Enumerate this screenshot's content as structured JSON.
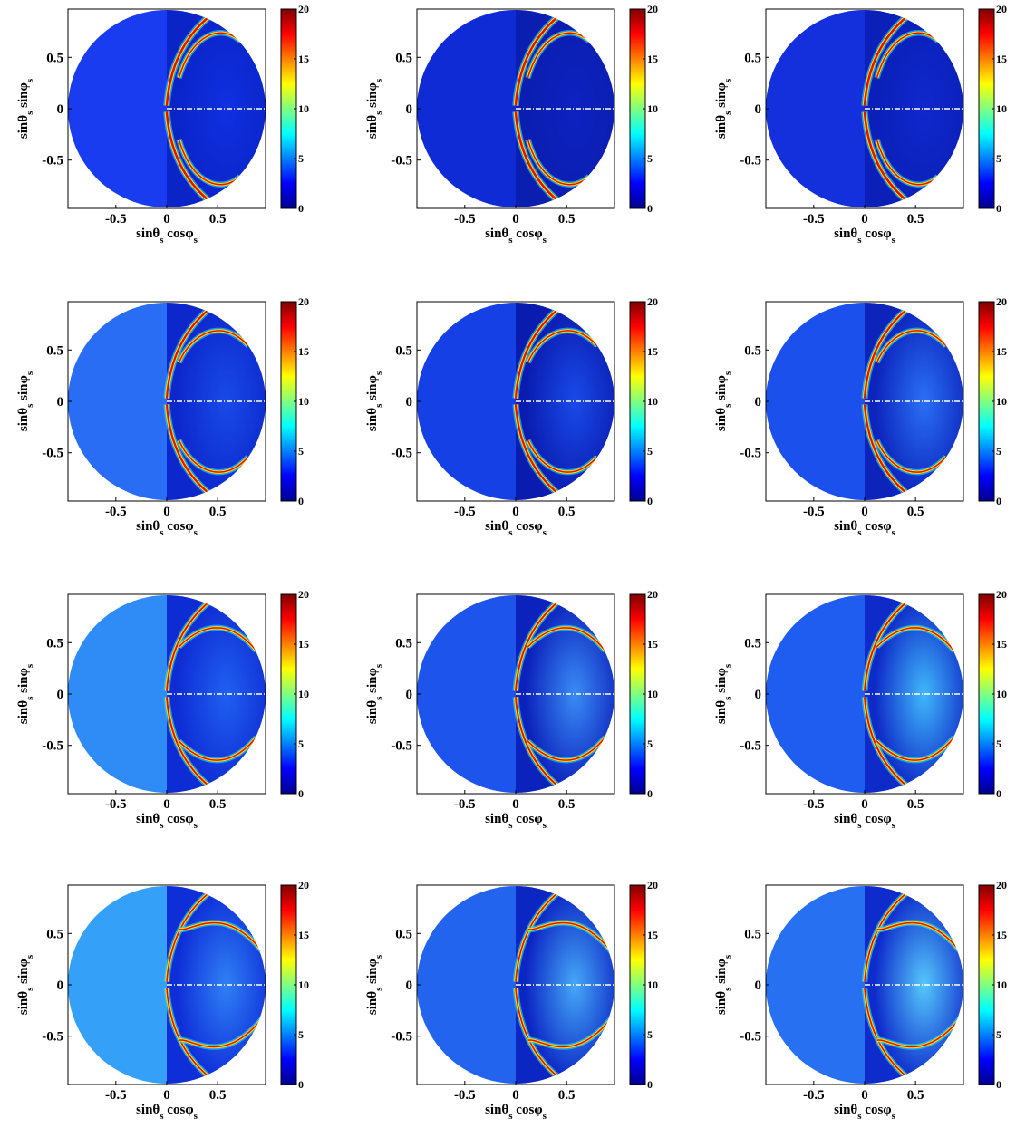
{
  "chart_data": [
    {
      "type": "heatmap",
      "xlabel": [
        "sinθ",
        "s",
        " cosφ",
        "s"
      ],
      "ylabel": [
        "sinθ",
        "s",
        " sinφ",
        "s"
      ],
      "xlim": [
        -0.97,
        0.97
      ],
      "ylim": [
        -0.97,
        0.97
      ],
      "xticks": [
        -0.5,
        0,
        0.5
      ],
      "yticks": [
        -0.5,
        0,
        0.5
      ],
      "colorbar": {
        "lim": [
          0,
          20
        ],
        "ticks": [
          0,
          5,
          10,
          15,
          20
        ],
        "colormap": "jet"
      }
    },
    {
      "type": "heatmap",
      "xlabel": [
        "sinθ",
        "s",
        " cosφ",
        "s"
      ],
      "ylabel": [
        "sinθ",
        "s",
        " sinφ",
        "s"
      ],
      "xlim": [
        -0.97,
        0.97
      ],
      "ylim": [
        -0.97,
        0.97
      ],
      "xticks": [
        -0.5,
        0,
        0.5
      ],
      "yticks": [
        -0.5,
        0,
        0.5
      ],
      "colorbar": {
        "lim": [
          0,
          20
        ],
        "ticks": [
          0,
          5,
          10,
          15,
          20
        ],
        "colormap": "jet"
      }
    },
    {
      "type": "heatmap",
      "xlabel": [
        "sinθ",
        "s",
        " cosφ",
        "s"
      ],
      "ylabel": [
        "sinθ",
        "s",
        " sinφ",
        "s"
      ],
      "xlim": [
        -0.97,
        0.97
      ],
      "ylim": [
        -0.97,
        0.97
      ],
      "xticks": [
        -0.5,
        0,
        0.5
      ],
      "yticks": [
        -0.5,
        0,
        0.5
      ],
      "colorbar": {
        "lim": [
          0,
          20
        ],
        "ticks": [
          0,
          5,
          10,
          15,
          20
        ],
        "colormap": "jet"
      }
    },
    {
      "type": "heatmap",
      "xlabel": [
        "sinθ",
        "s",
        " cosφ",
        "s"
      ],
      "ylabel": [
        "sinθ",
        "s",
        " sinφ",
        "s"
      ],
      "xlim": [
        -0.97,
        0.97
      ],
      "ylim": [
        -0.97,
        0.97
      ],
      "xticks": [
        -0.5,
        0,
        0.5
      ],
      "yticks": [
        -0.5,
        0,
        0.5
      ],
      "colorbar": {
        "lim": [
          0,
          20
        ],
        "ticks": [
          0,
          5,
          10,
          15,
          20
        ],
        "colormap": "jet"
      }
    },
    {
      "type": "heatmap",
      "xlabel": [
        "sinθ",
        "s",
        " cosφ",
        "s"
      ],
      "ylabel": [
        "sinθ",
        "s",
        " sinφ",
        "s"
      ],
      "xlim": [
        -0.97,
        0.97
      ],
      "ylim": [
        -0.97,
        0.97
      ],
      "xticks": [
        -0.5,
        0,
        0.5
      ],
      "yticks": [
        -0.5,
        0,
        0.5
      ],
      "colorbar": {
        "lim": [
          0,
          20
        ],
        "ticks": [
          0,
          5,
          10,
          15,
          20
        ],
        "colormap": "jet"
      }
    },
    {
      "type": "heatmap",
      "xlabel": [
        "sinθ",
        "s",
        " cosφ",
        "s"
      ],
      "ylabel": [
        "sinθ",
        "s",
        " sinφ",
        "s"
      ],
      "xlim": [
        -0.97,
        0.97
      ],
      "ylim": [
        -0.97,
        0.97
      ],
      "xticks": [
        -0.5,
        0,
        0.5
      ],
      "yticks": [
        -0.5,
        0,
        0.5
      ],
      "colorbar": {
        "lim": [
          0,
          20
        ],
        "ticks": [
          0,
          5,
          10,
          15,
          20
        ],
        "colormap": "jet"
      }
    },
    {
      "type": "heatmap",
      "xlabel": [
        "sinθ",
        "s",
        " cosφ",
        "s"
      ],
      "ylabel": [
        "sinθ",
        "s",
        " sinφ",
        "s"
      ],
      "xlim": [
        -0.97,
        0.97
      ],
      "ylim": [
        -0.97,
        0.97
      ],
      "xticks": [
        -0.5,
        0,
        0.5
      ],
      "yticks": [
        -0.5,
        0,
        0.5
      ],
      "colorbar": {
        "lim": [
          0,
          20
        ],
        "ticks": [
          0,
          5,
          10,
          15,
          20
        ],
        "colormap": "jet"
      }
    },
    {
      "type": "heatmap",
      "xlabel": [
        "sinθ",
        "s",
        " cosφ",
        "s"
      ],
      "ylabel": [
        "sinθ",
        "s",
        " sinφ",
        "s"
      ],
      "xlim": [
        -0.97,
        0.97
      ],
      "ylim": [
        -0.97,
        0.97
      ],
      "xticks": [
        -0.5,
        0,
        0.5
      ],
      "yticks": [
        -0.5,
        0,
        0.5
      ],
      "colorbar": {
        "lim": [
          0,
          20
        ],
        "ticks": [
          0,
          5,
          10,
          15,
          20
        ],
        "colormap": "jet"
      }
    },
    {
      "type": "heatmap",
      "xlabel": [
        "sinθ",
        "s",
        " cosφ",
        "s"
      ],
      "ylabel": [
        "sinθ",
        "s",
        " sinφ",
        "s"
      ],
      "xlim": [
        -0.97,
        0.97
      ],
      "ylim": [
        -0.97,
        0.97
      ],
      "xticks": [
        -0.5,
        0,
        0.5
      ],
      "yticks": [
        -0.5,
        0,
        0.5
      ],
      "colorbar": {
        "lim": [
          0,
          20
        ],
        "ticks": [
          0,
          5,
          10,
          15,
          20
        ],
        "colormap": "jet"
      }
    },
    {
      "type": "heatmap",
      "xlabel": [
        "sinθ",
        "s",
        " cosφ",
        "s"
      ],
      "ylabel": [
        "sinθ",
        "s",
        " sinφ",
        "s"
      ],
      "xlim": [
        -0.97,
        0.97
      ],
      "ylim": [
        -0.97,
        0.97
      ],
      "xticks": [
        -0.5,
        0,
        0.5
      ],
      "yticks": [
        -0.5,
        0,
        0.5
      ],
      "colorbar": {
        "lim": [
          0,
          20
        ],
        "ticks": [
          0,
          5,
          10,
          15,
          20
        ],
        "colormap": "jet"
      }
    },
    {
      "type": "heatmap",
      "xlabel": [
        "sinθ",
        "s",
        " cosφ",
        "s"
      ],
      "ylabel": [
        "sinθ",
        "s",
        " sinφ",
        "s"
      ],
      "xlim": [
        -0.97,
        0.97
      ],
      "ylim": [
        -0.97,
        0.97
      ],
      "xticks": [
        -0.5,
        0,
        0.5
      ],
      "yticks": [
        -0.5,
        0,
        0.5
      ],
      "colorbar": {
        "lim": [
          0,
          20
        ],
        "ticks": [
          0,
          5,
          10,
          15,
          20
        ],
        "colormap": "jet"
      }
    },
    {
      "type": "heatmap",
      "xlabel": [
        "sinθ",
        "s",
        " cosφ",
        "s"
      ],
      "ylabel": [
        "sinθ",
        "s",
        " sinφ",
        "s"
      ],
      "xlim": [
        -0.97,
        0.97
      ],
      "ylim": [
        -0.97,
        0.97
      ],
      "xticks": [
        -0.5,
        0,
        0.5
      ],
      "yticks": [
        -0.5,
        0,
        0.5
      ],
      "colorbar": {
        "lim": [
          0,
          20
        ],
        "ticks": [
          0,
          5,
          10,
          15,
          20
        ],
        "colormap": "jet"
      }
    }
  ]
}
